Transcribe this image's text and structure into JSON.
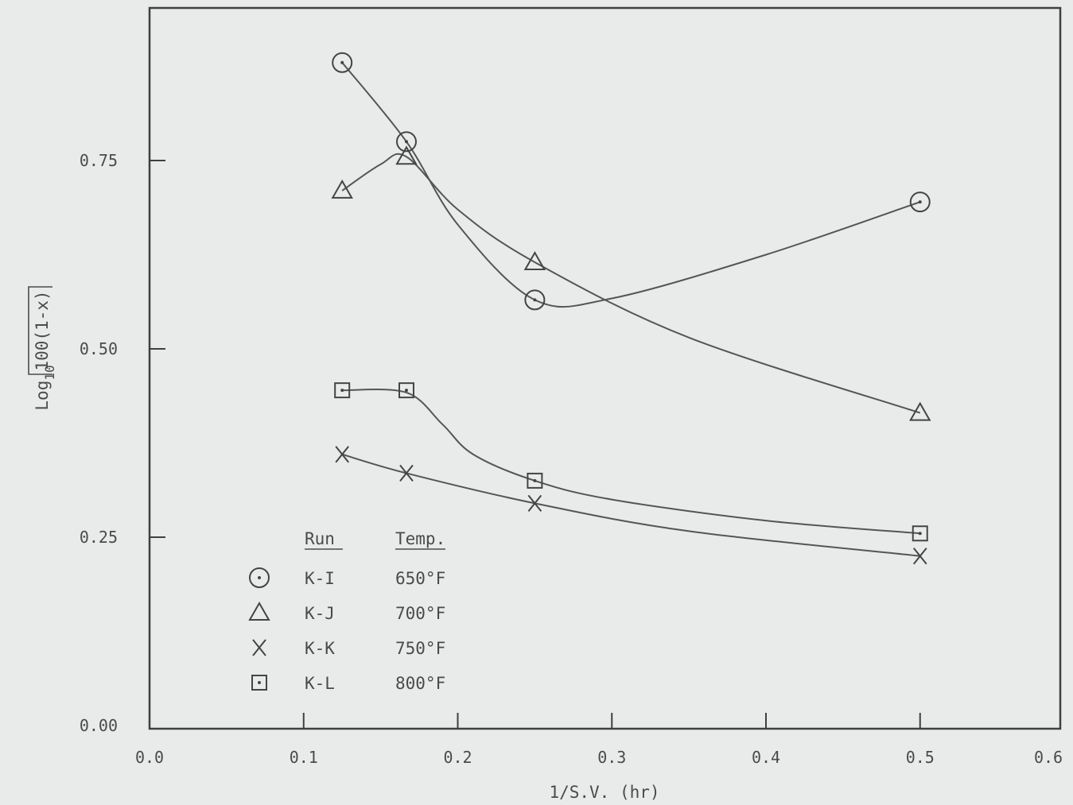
{
  "chart_data": {
    "type": "line",
    "xlabel": "1/S.V.   (hr)",
    "ylabel": {
      "prefix": "Log",
      "subscript": "10",
      "bracket_text": "100(1-x)"
    },
    "xlim": [
      0.0,
      0.6
    ],
    "ylim": [
      0.0,
      0.95
    ],
    "x_ticks": [
      0.0,
      0.1,
      0.2,
      0.3,
      0.4,
      0.5,
      0.6
    ],
    "x_tick_labels": [
      "0.0",
      "0.1",
      "0.2",
      "0.3",
      "0.4",
      "0.5",
      "0.6"
    ],
    "y_ticks": [
      0.0,
      0.25,
      0.5,
      0.75
    ],
    "y_tick_labels": [
      "0.00",
      "0.25",
      "0.50",
      "0.75"
    ],
    "grid": false,
    "legend": {
      "placement": "bottom-left",
      "header_run": "Run",
      "header_temp": "Temp."
    },
    "series": [
      {
        "run": "K-I",
        "temp": "650°F",
        "marker": "circle-dot",
        "x": [
          0.125,
          0.1667,
          0.25,
          0.5
        ],
        "y": [
          0.88,
          0.775,
          0.565,
          0.695
        ],
        "curve": [
          [
            0.125,
            0.88
          ],
          [
            0.1667,
            0.775
          ],
          [
            0.2,
            0.665
          ],
          [
            0.25,
            0.565
          ],
          [
            0.3,
            0.567
          ],
          [
            0.4,
            0.625
          ],
          [
            0.5,
            0.695
          ]
        ]
      },
      {
        "run": "K-J",
        "temp": "700°F",
        "marker": "triangle",
        "x": [
          0.125,
          0.1667,
          0.25,
          0.5
        ],
        "y": [
          0.71,
          0.755,
          0.615,
          0.415
        ],
        "curve": [
          [
            0.125,
            0.71
          ],
          [
            0.15,
            0.745
          ],
          [
            0.1667,
            0.755
          ],
          [
            0.2,
            0.685
          ],
          [
            0.25,
            0.615
          ],
          [
            0.35,
            0.515
          ],
          [
            0.5,
            0.415
          ]
        ]
      },
      {
        "run": "K-K",
        "temp": "750°F",
        "marker": "cross",
        "x": [
          0.125,
          0.1667,
          0.25,
          0.5
        ],
        "y": [
          0.36,
          0.335,
          0.295,
          0.225
        ],
        "curve": [
          [
            0.125,
            0.36
          ],
          [
            0.1667,
            0.335
          ],
          [
            0.25,
            0.295
          ],
          [
            0.35,
            0.258
          ],
          [
            0.5,
            0.225
          ]
        ]
      },
      {
        "run": "K-L",
        "temp": "800°F",
        "marker": "square-dot",
        "x": [
          0.125,
          0.1667,
          0.25,
          0.5
        ],
        "y": [
          0.445,
          0.445,
          0.325,
          0.255
        ],
        "curve": [
          [
            0.125,
            0.445
          ],
          [
            0.1667,
            0.442
          ],
          [
            0.19,
            0.4
          ],
          [
            0.21,
            0.36
          ],
          [
            0.25,
            0.325
          ],
          [
            0.3,
            0.3
          ],
          [
            0.4,
            0.272
          ],
          [
            0.5,
            0.255
          ]
        ]
      }
    ]
  }
}
